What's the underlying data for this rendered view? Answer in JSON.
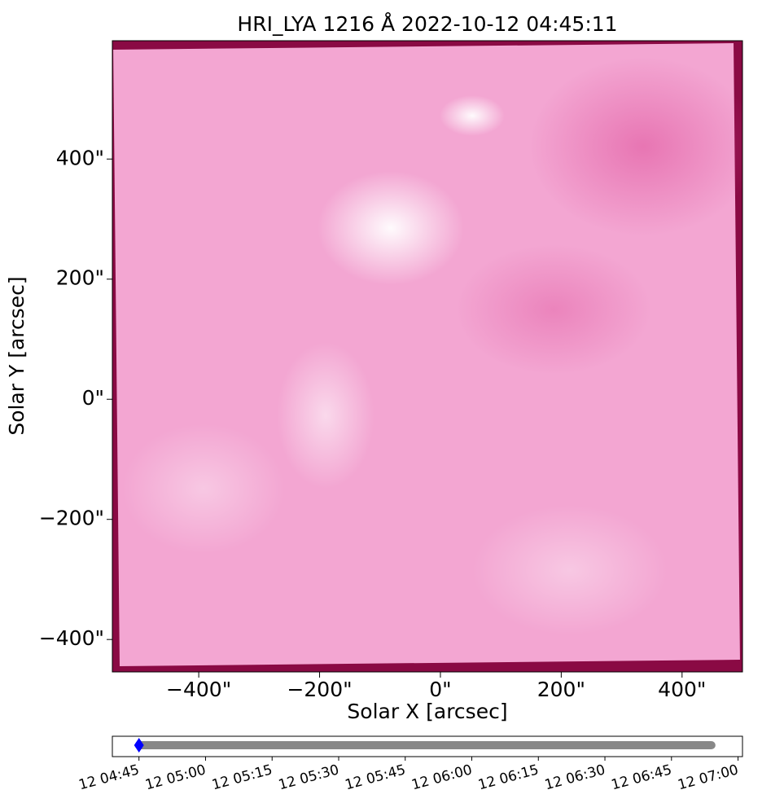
{
  "chart_data": [
    {
      "type": "image",
      "title": "HRI_LYA 1216 Å 2022-10-12 04:45:11",
      "xlabel": "Solar X [arcsec]",
      "ylabel": "Solar Y [arcsec]",
      "xlim": [
        -543,
        500
      ],
      "ylim": [
        -454,
        597
      ],
      "xticks": [
        {
          "value": -400,
          "label": "−400\""
        },
        {
          "value": -200,
          "label": "−200\""
        },
        {
          "value": 0,
          "label": "0\""
        },
        {
          "value": 200,
          "label": "200\""
        },
        {
          "value": 400,
          "label": "400\""
        }
      ],
      "yticks": [
        {
          "value": -400,
          "label": "−400\""
        },
        {
          "value": -200,
          "label": "−200\""
        },
        {
          "value": 0,
          "label": "0\""
        },
        {
          "value": 200,
          "label": "200\""
        },
        {
          "value": 400,
          "label": "400\""
        }
      ]
    },
    {
      "type": "timeline",
      "xlim": [
        "12 04:39",
        "12 07:01"
      ],
      "xticks": [
        "12 04:45",
        "12 05:00",
        "12 05:15",
        "12 05:30",
        "12 05:45",
        "12 06:00",
        "12 06:15",
        "12 06:30",
        "12 06:45",
        "12 07:00"
      ],
      "x": [
        "12 04:45",
        "12 06:54"
      ],
      "color": "#888888",
      "current": "12 04:45",
      "current_color": "#0000ff"
    }
  ]
}
